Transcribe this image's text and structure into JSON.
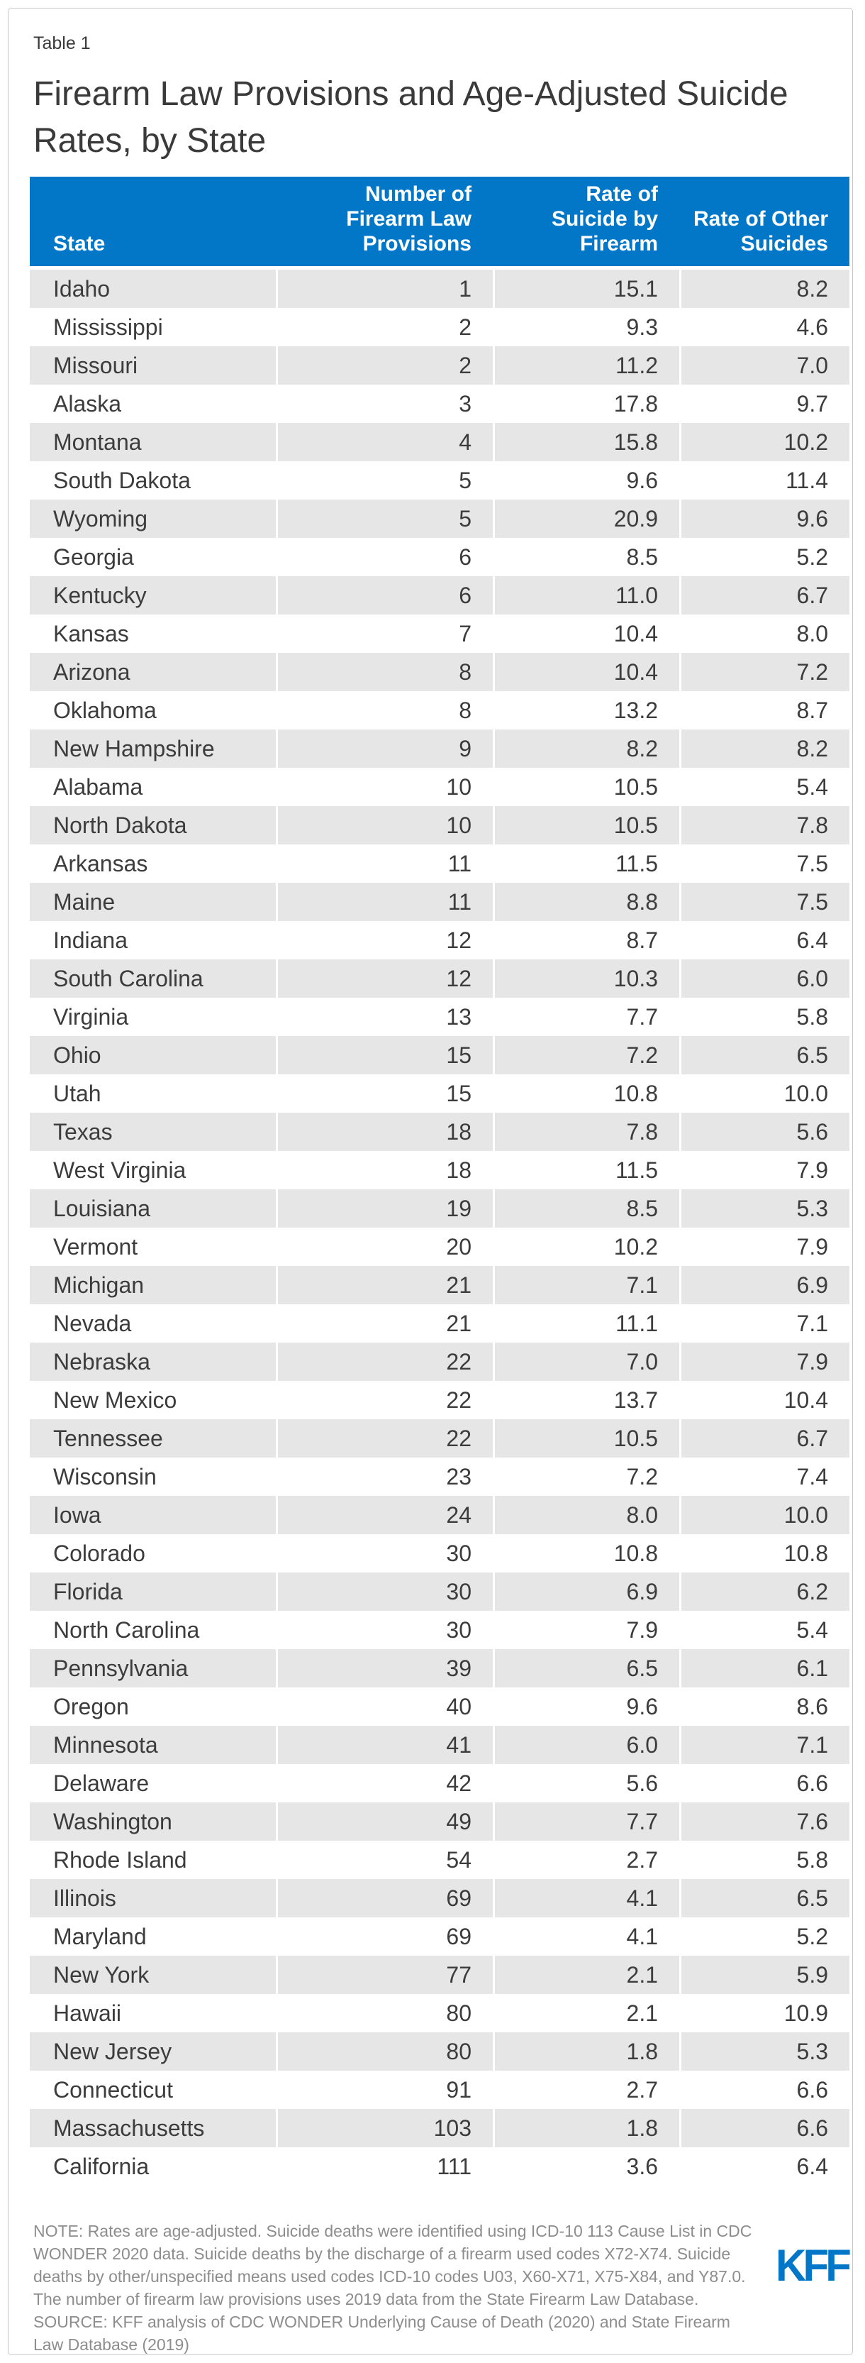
{
  "page": {
    "table_label": "Table 1",
    "title": "Firearm Law Provisions and Age-Adjusted Suicide Rates, by State",
    "note": "NOTE: Rates are age-adjusted. Suicide deaths were identified using ICD-10 113 Cause List in CDC WONDER 2020 data. Suicide deaths by the discharge of a firearm used codes X72-X74. Suicide deaths by other/unspecified means used codes ICD-10 codes U03, X60-X71, X75-X84, and Y87.0. The number of firearm law provisions uses 2019 data from the State Firearm Law Database.",
    "source": "SOURCE: KFF analysis of CDC WONDER Underlying Cause of Death (2020) and State Firearm Law Database (2019)",
    "logo_text": "KFF"
  },
  "colors": {
    "header_blue": "#0277c8",
    "row_stripe_gray": "#e6e6e6",
    "logo_blue": "#0277c8",
    "body_text": "#3c3c3c",
    "note_text": "#8d8d8d"
  },
  "chart_data": {
    "type": "table",
    "label": "Table 1",
    "title": "Firearm Law Provisions and Age-Adjusted Suicide Rates, by State",
    "columns": [
      "State",
      "Number of Firearm Law Provisions",
      "Rate of Suicide by Firearm",
      "Rate of Other Suicides"
    ],
    "rows": [
      [
        "Idaho",
        "1",
        "15.1",
        "8.2"
      ],
      [
        "Mississippi",
        "2",
        "9.3",
        "4.6"
      ],
      [
        "Missouri",
        "2",
        "11.2",
        "7.0"
      ],
      [
        "Alaska",
        "3",
        "17.8",
        "9.7"
      ],
      [
        "Montana",
        "4",
        "15.8",
        "10.2"
      ],
      [
        "South Dakota",
        "5",
        "9.6",
        "11.4"
      ],
      [
        "Wyoming",
        "5",
        "20.9",
        "9.6"
      ],
      [
        "Georgia",
        "6",
        "8.5",
        "5.2"
      ],
      [
        "Kentucky",
        "6",
        "11.0",
        "6.7"
      ],
      [
        "Kansas",
        "7",
        "10.4",
        "8.0"
      ],
      [
        "Arizona",
        "8",
        "10.4",
        "7.2"
      ],
      [
        "Oklahoma",
        "8",
        "13.2",
        "8.7"
      ],
      [
        "New Hampshire",
        "9",
        "8.2",
        "8.2"
      ],
      [
        "Alabama",
        "10",
        "10.5",
        "5.4"
      ],
      [
        "North Dakota",
        "10",
        "10.5",
        "7.8"
      ],
      [
        "Arkansas",
        "11",
        "11.5",
        "7.5"
      ],
      [
        "Maine",
        "11",
        "8.8",
        "7.5"
      ],
      [
        "Indiana",
        "12",
        "8.7",
        "6.4"
      ],
      [
        "South Carolina",
        "12",
        "10.3",
        "6.0"
      ],
      [
        "Virginia",
        "13",
        "7.7",
        "5.8"
      ],
      [
        "Ohio",
        "15",
        "7.2",
        "6.5"
      ],
      [
        "Utah",
        "15",
        "10.8",
        "10.0"
      ],
      [
        "Texas",
        "18",
        "7.8",
        "5.6"
      ],
      [
        "West Virginia",
        "18",
        "11.5",
        "7.9"
      ],
      [
        "Louisiana",
        "19",
        "8.5",
        "5.3"
      ],
      [
        "Vermont",
        "20",
        "10.2",
        "7.9"
      ],
      [
        "Michigan",
        "21",
        "7.1",
        "6.9"
      ],
      [
        "Nevada",
        "21",
        "11.1",
        "7.1"
      ],
      [
        "Nebraska",
        "22",
        "7.0",
        "7.9"
      ],
      [
        "New Mexico",
        "22",
        "13.7",
        "10.4"
      ],
      [
        "Tennessee",
        "22",
        "10.5",
        "6.7"
      ],
      [
        "Wisconsin",
        "23",
        "7.2",
        "7.4"
      ],
      [
        "Iowa",
        "24",
        "8.0",
        "10.0"
      ],
      [
        "Colorado",
        "30",
        "10.8",
        "10.8"
      ],
      [
        "Florida",
        "30",
        "6.9",
        "6.2"
      ],
      [
        "North Carolina",
        "30",
        "7.9",
        "5.4"
      ],
      [
        "Pennsylvania",
        "39",
        "6.5",
        "6.1"
      ],
      [
        "Oregon",
        "40",
        "9.6",
        "8.6"
      ],
      [
        "Minnesota",
        "41",
        "6.0",
        "7.1"
      ],
      [
        "Delaware",
        "42",
        "5.6",
        "6.6"
      ],
      [
        "Washington",
        "49",
        "7.7",
        "7.6"
      ],
      [
        "Rhode Island",
        "54",
        "2.7",
        "5.8"
      ],
      [
        "Illinois",
        "69",
        "4.1",
        "6.5"
      ],
      [
        "Maryland",
        "69",
        "4.1",
        "5.2"
      ],
      [
        "New York",
        "77",
        "2.1",
        "5.9"
      ],
      [
        "Hawaii",
        "80",
        "2.1",
        "10.9"
      ],
      [
        "New Jersey",
        "80",
        "1.8",
        "5.3"
      ],
      [
        "Connecticut",
        "91",
        "2.7",
        "6.6"
      ],
      [
        "Massachusetts",
        "103",
        "1.8",
        "6.6"
      ],
      [
        "California",
        "111",
        "3.6",
        "6.4"
      ]
    ]
  }
}
